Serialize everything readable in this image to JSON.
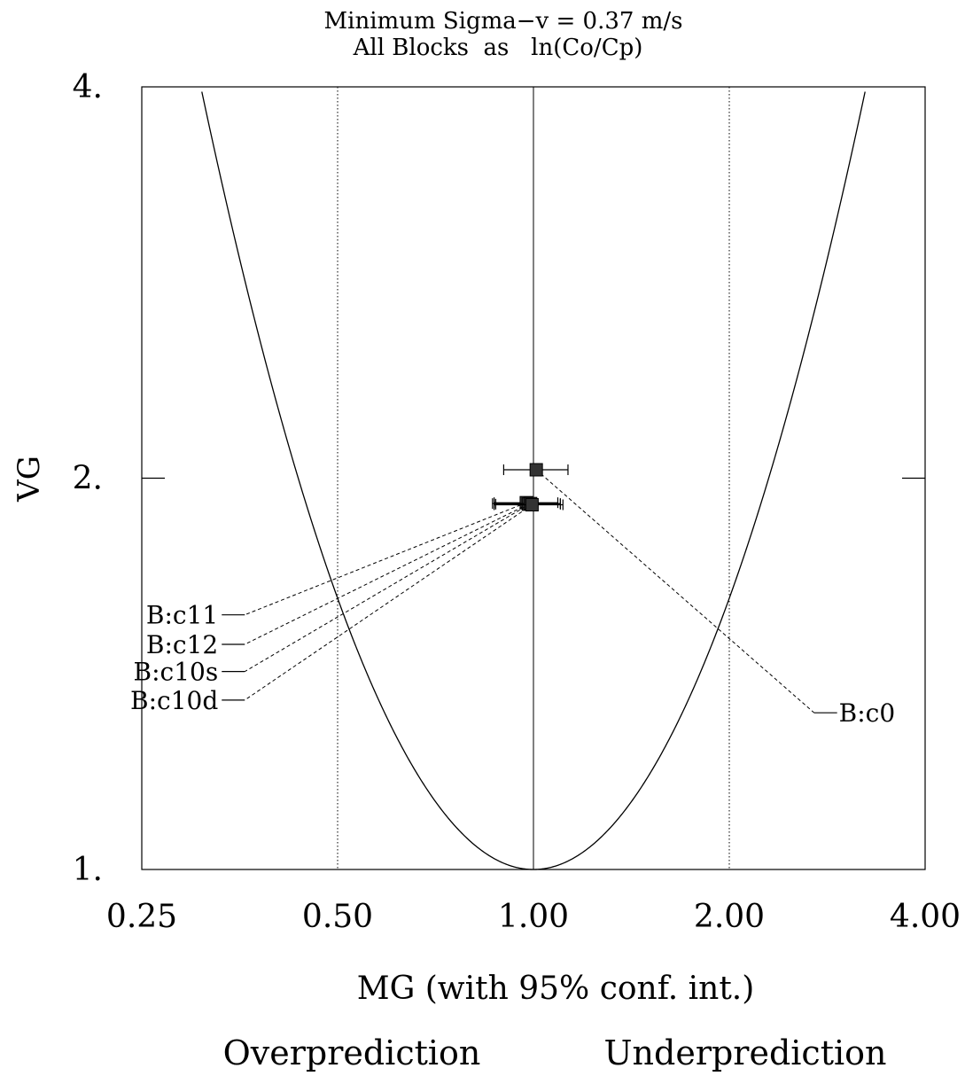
{
  "chart_data": {
    "type": "scatter",
    "title_lines": [
      "Minimum Sigma−v = 0.37 m/s",
      "All Blocks  as   ln(Co/Cp)"
    ],
    "xlabel": "MG (with 95% conf. int.)",
    "ylabel": "VG",
    "x_scale": "log",
    "y_scale": "log",
    "xlim": [
      0.25,
      4.0
    ],
    "ylim": [
      1.0,
      4.0
    ],
    "x_ticks": [
      {
        "value": 0.25,
        "label": "0.25"
      },
      {
        "value": 0.5,
        "label": "0.50"
      },
      {
        "value": 1.0,
        "label": "1.00"
      },
      {
        "value": 2.0,
        "label": "2.00"
      },
      {
        "value": 4.0,
        "label": "4.00"
      }
    ],
    "y_ticks": [
      {
        "value": 1.0,
        "label": "1."
      },
      {
        "value": 2.0,
        "label": "2."
      },
      {
        "value": 4.0,
        "label": "4."
      }
    ],
    "reference_lines": {
      "solid_x": [
        1.0
      ],
      "dotted_x": [
        0.5,
        2.0
      ]
    },
    "minimum_curve": "VG = exp((ln MG)^2)",
    "points": [
      {
        "label": "B:c0",
        "mg": 1.01,
        "vg": 2.03,
        "ci": [
          0.9,
          1.13
        ],
        "label_value": [
          2.7,
          1.32
        ],
        "side": "right"
      },
      {
        "label": "B:c11",
        "mg": 0.975,
        "vg": 1.915,
        "ci": [
          0.87,
          1.09
        ],
        "label_value": [
          0.36,
          1.57
        ],
        "side": "left"
      },
      {
        "label": "B:c12",
        "mg": 0.982,
        "vg": 1.91,
        "ci": [
          0.875,
          1.1
        ],
        "label_value": [
          0.36,
          1.49
        ],
        "side": "left"
      },
      {
        "label": "B:c10s",
        "mg": 0.99,
        "vg": 1.912,
        "ci": [
          0.865,
          1.1
        ],
        "label_value": [
          0.36,
          1.42
        ],
        "side": "left"
      },
      {
        "label": "B:c10d",
        "mg": 0.995,
        "vg": 1.908,
        "ci": [
          0.87,
          1.11
        ],
        "label_value": [
          0.36,
          1.35
        ],
        "side": "left"
      }
    ],
    "footer": {
      "left": "Overprediction",
      "right": "Underprediction"
    }
  }
}
